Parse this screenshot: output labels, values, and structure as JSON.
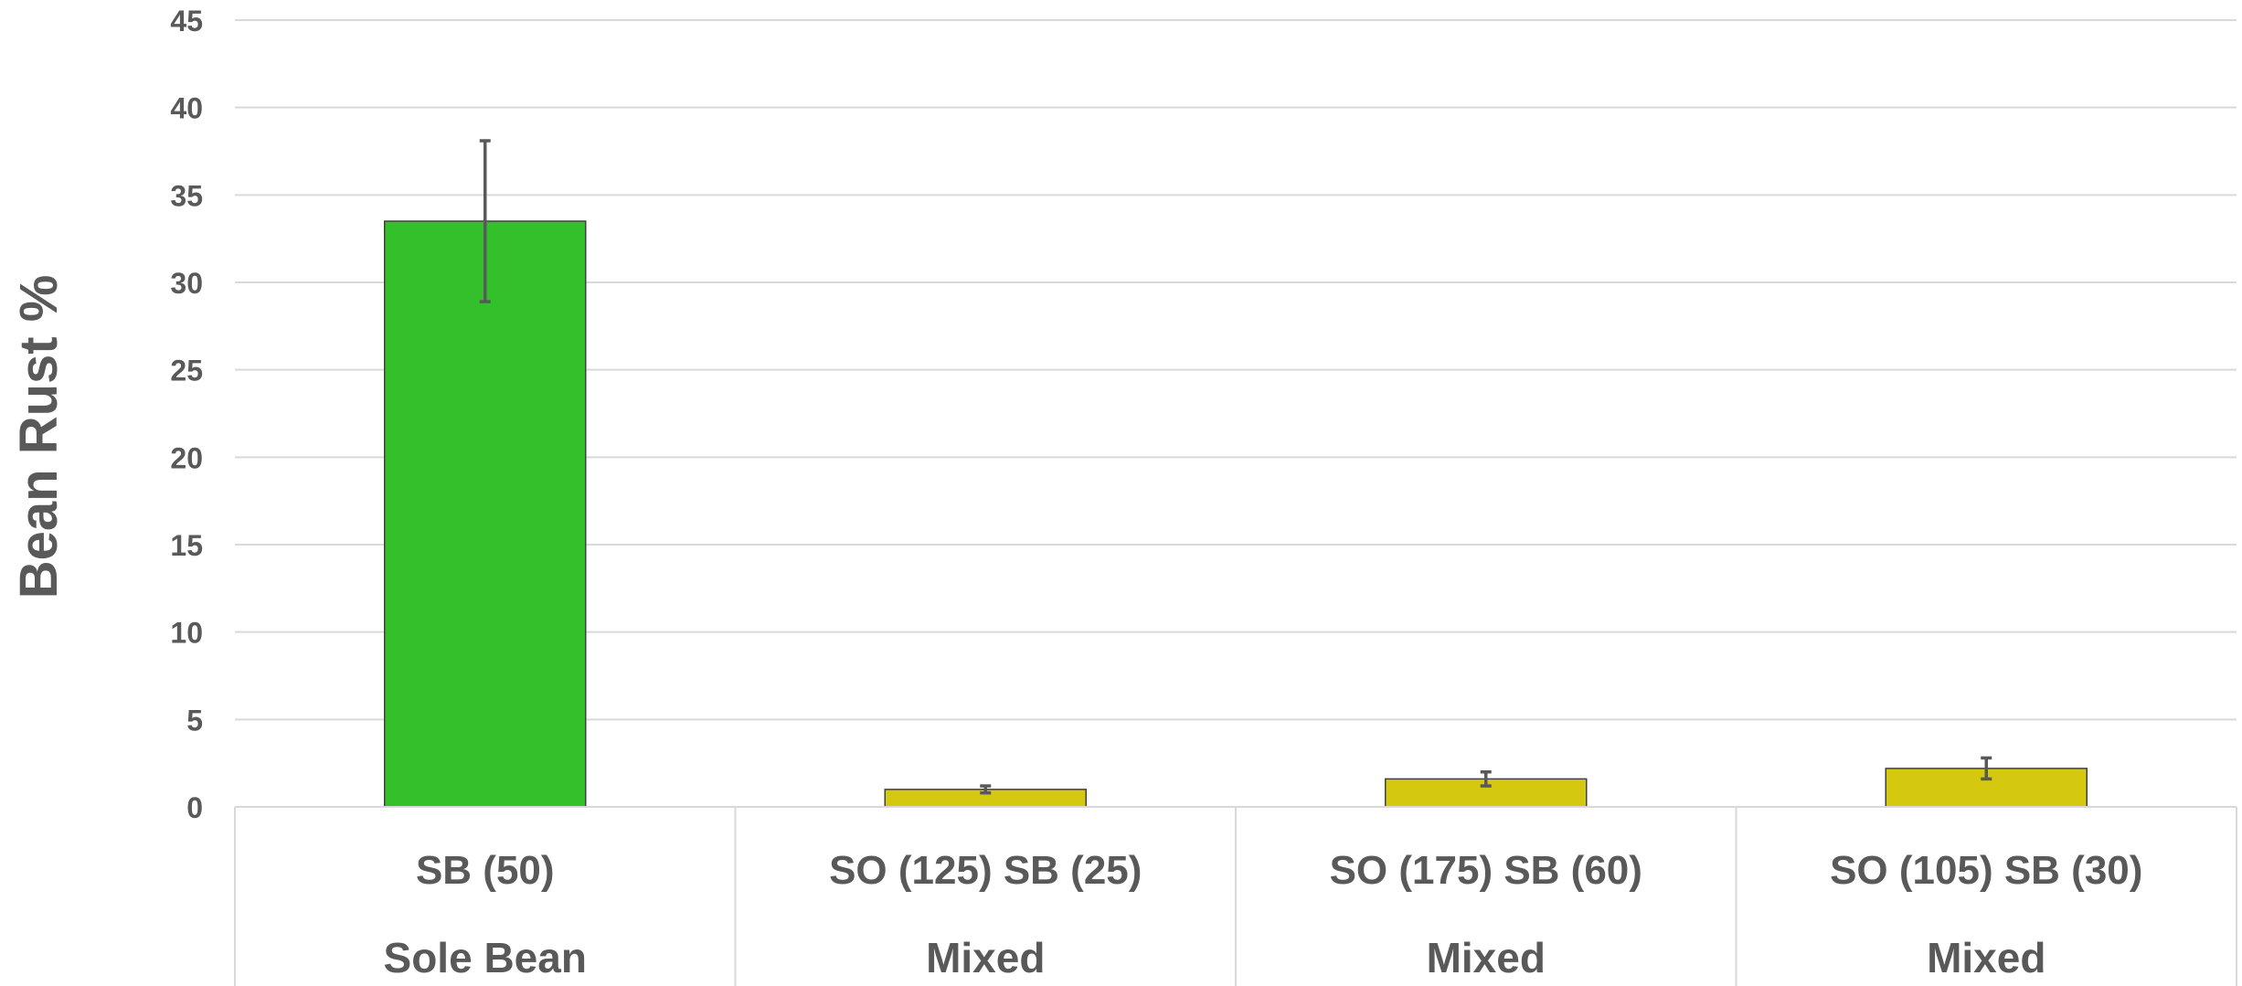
{
  "chart_data": {
    "type": "bar",
    "ylabel": "Bean Rust %",
    "ylim": [
      0,
      45
    ],
    "yticks": [
      0,
      5,
      10,
      15,
      20,
      25,
      30,
      35,
      40,
      45
    ],
    "grid": true,
    "categories": [
      "SB (50)",
      "SO (125) SB (25)",
      "SO (175) SB (60)",
      "SO (105) SB (30)"
    ],
    "groups": [
      "Sole Bean",
      "Mixed",
      "Mixed",
      "Mixed"
    ],
    "values": [
      33.5,
      1.0,
      1.6,
      2.2
    ],
    "error": [
      4.6,
      0.2,
      0.4,
      0.6
    ],
    "colors": [
      "#33c02a",
      "#d4c90f",
      "#d4c90f",
      "#d4c90f"
    ]
  }
}
